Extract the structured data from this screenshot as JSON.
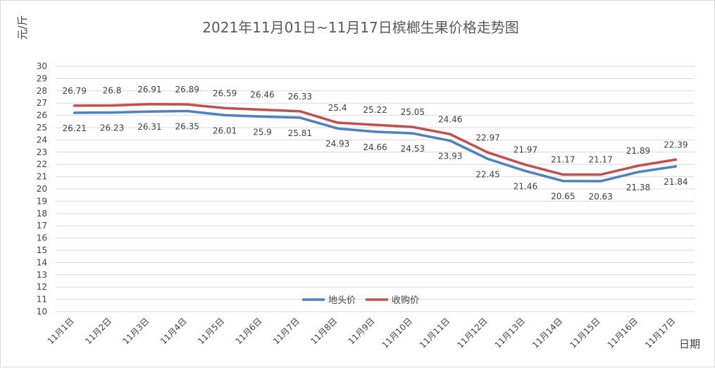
{
  "chart_data": {
    "type": "line",
    "title": "2021年11月01日~11月17日槟榔生果价格走势图",
    "xlabel": "日期",
    "ylabel": "元/斤",
    "ylim": [
      10,
      30
    ],
    "ytick_step": 1,
    "grid": true,
    "legend_position": "bottom-center",
    "categories": [
      "11月1日",
      "11月2日",
      "11月3日",
      "11月4日",
      "11月5日",
      "11月6日",
      "11月7日",
      "11月8日",
      "11月9日",
      "11月10日",
      "11月11日",
      "11月12日",
      "11月13日",
      "11月14日",
      "11月15日",
      "11月16日",
      "11月17日"
    ],
    "series": [
      {
        "name": "地头价",
        "color": "#4f81bd",
        "label_side": "below",
        "values": [
          26.21,
          26.23,
          26.31,
          26.35,
          26.01,
          25.9,
          25.81,
          24.93,
          24.66,
          24.53,
          23.93,
          22.45,
          21.46,
          20.65,
          20.63,
          21.38,
          21.84
        ],
        "labels": [
          "26.21",
          "26.23",
          "26.31",
          "26.35",
          "26.01",
          "25.9",
          "25.81",
          "24.93",
          "24.66",
          "24.53",
          "23.93",
          "22.45",
          "21.46",
          "20.65",
          "20.63",
          "21.38",
          "21.84"
        ]
      },
      {
        "name": "收购价",
        "color": "#c0504d",
        "label_side": "above",
        "values": [
          26.79,
          26.8,
          26.91,
          26.89,
          26.59,
          26.46,
          26.33,
          25.4,
          25.22,
          25.05,
          24.46,
          22.97,
          21.97,
          21.17,
          21.17,
          21.89,
          22.39
        ],
        "labels": [
          "26.79",
          "26.8",
          "26.91",
          "26.89",
          "26.59",
          "26.46",
          "26.33",
          "25.4",
          "25.22",
          "25.05",
          "24.46",
          "22.97",
          "21.97",
          "21.17",
          "21.17",
          "21.89",
          "22.39"
        ]
      }
    ]
  }
}
